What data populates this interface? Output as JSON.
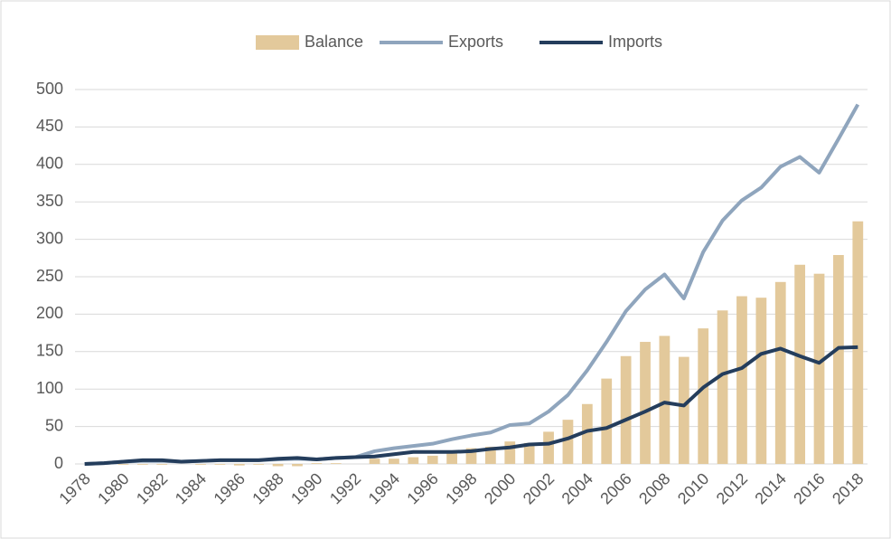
{
  "chart_data": {
    "type": "bar_line",
    "categories": [
      "1978",
      null,
      "1980",
      null,
      "1982",
      null,
      "1984",
      null,
      "1986",
      null,
      "1988",
      null,
      "1990",
      null,
      "1992",
      null,
      "1994",
      null,
      "1996",
      null,
      "1998",
      null,
      "2000",
      null,
      "2002",
      null,
      "2004",
      null,
      "2006",
      null,
      "2008",
      null,
      "2010",
      null,
      "2012",
      null,
      "2014",
      null,
      "2016",
      null,
      "2018"
    ],
    "series": [
      {
        "name": "Balance",
        "type": "bar",
        "color": "#e3c99b",
        "values": [
          0,
          0,
          -1,
          -1,
          -1,
          0,
          -1,
          -1,
          -2,
          -1,
          -3,
          -3,
          1,
          1,
          0,
          7,
          7,
          9,
          11,
          17,
          21,
          23,
          30,
          28,
          43,
          59,
          80,
          114,
          144,
          163,
          171,
          143,
          181,
          205,
          224,
          222,
          243,
          266,
          254,
          279,
          324
        ]
      },
      {
        "name": "Exports",
        "type": "line",
        "color": "#8fa5bd",
        "values": [
          0,
          1,
          3,
          4,
          4,
          3,
          4,
          5,
          5,
          5,
          6,
          7,
          6,
          8,
          9,
          17,
          21,
          24,
          27,
          33,
          38,
          42,
          52,
          54,
          70,
          92,
          125,
          163,
          204,
          233,
          253,
          221,
          283,
          325,
          352,
          369,
          397,
          410,
          389,
          434,
          480
        ]
      },
      {
        "name": "Imports",
        "type": "line",
        "color": "#243d5c",
        "values": [
          0,
          1,
          3,
          5,
          5,
          3,
          4,
          5,
          5,
          5,
          7,
          8,
          6,
          8,
          9,
          10,
          13,
          16,
          16,
          16,
          17,
          20,
          22,
          26,
          27,
          34,
          44,
          48,
          59,
          70,
          82,
          78,
          102,
          120,
          128,
          147,
          154,
          144,
          135,
          155,
          156
        ]
      }
    ],
    "ylim": [
      0,
      500
    ],
    "yticks": [
      0,
      50,
      100,
      150,
      200,
      250,
      300,
      350,
      400,
      450,
      500
    ],
    "grid": true,
    "legend": "top"
  }
}
